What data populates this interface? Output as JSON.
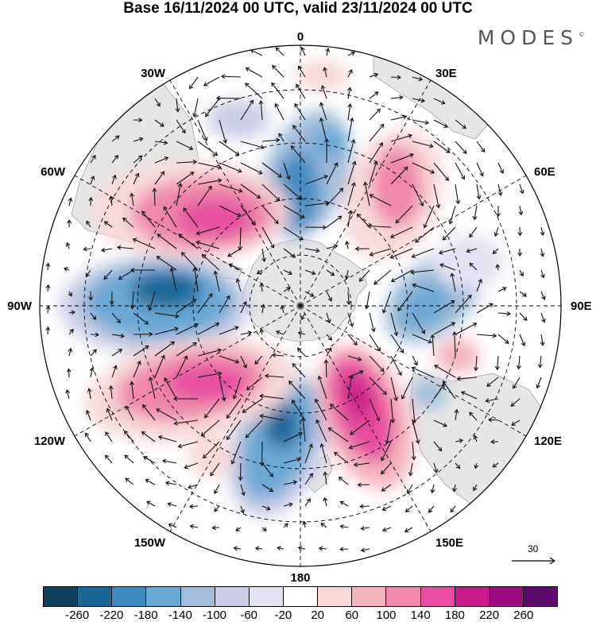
{
  "title": "Base 16/11/2024 00 UTC, valid 23/11/2024 00 UTC",
  "brand": "MODES",
  "brand_mark": "©",
  "longitude_labels": {
    "n0": "0",
    "e30": "30E",
    "e60": "60E",
    "e90": "90E",
    "e120": "120E",
    "e150": "150E",
    "s180": "180",
    "w150": "150W",
    "w120": "120W",
    "w90": "90W",
    "w60": "60W",
    "w30": "30W"
  },
  "reference_vector": {
    "value": "30"
  },
  "colorbar": {
    "colors": [
      "#0d3f5e",
      "#1a679a",
      "#3f8cc2",
      "#6aa9d4",
      "#a2bddc",
      "#c9cce6",
      "#e4e3f1",
      "#ffffff",
      "#f8d8d8",
      "#f4b3bd",
      "#ef86ab",
      "#e64da0",
      "#c91b8a",
      "#9c0e7e",
      "#5c0a6e"
    ],
    "ticks": [
      "-260",
      "-220",
      "-180",
      "-140",
      "-100",
      "-60",
      "-20",
      "20",
      "60",
      "100",
      "140",
      "180",
      "220",
      "260"
    ]
  }
}
